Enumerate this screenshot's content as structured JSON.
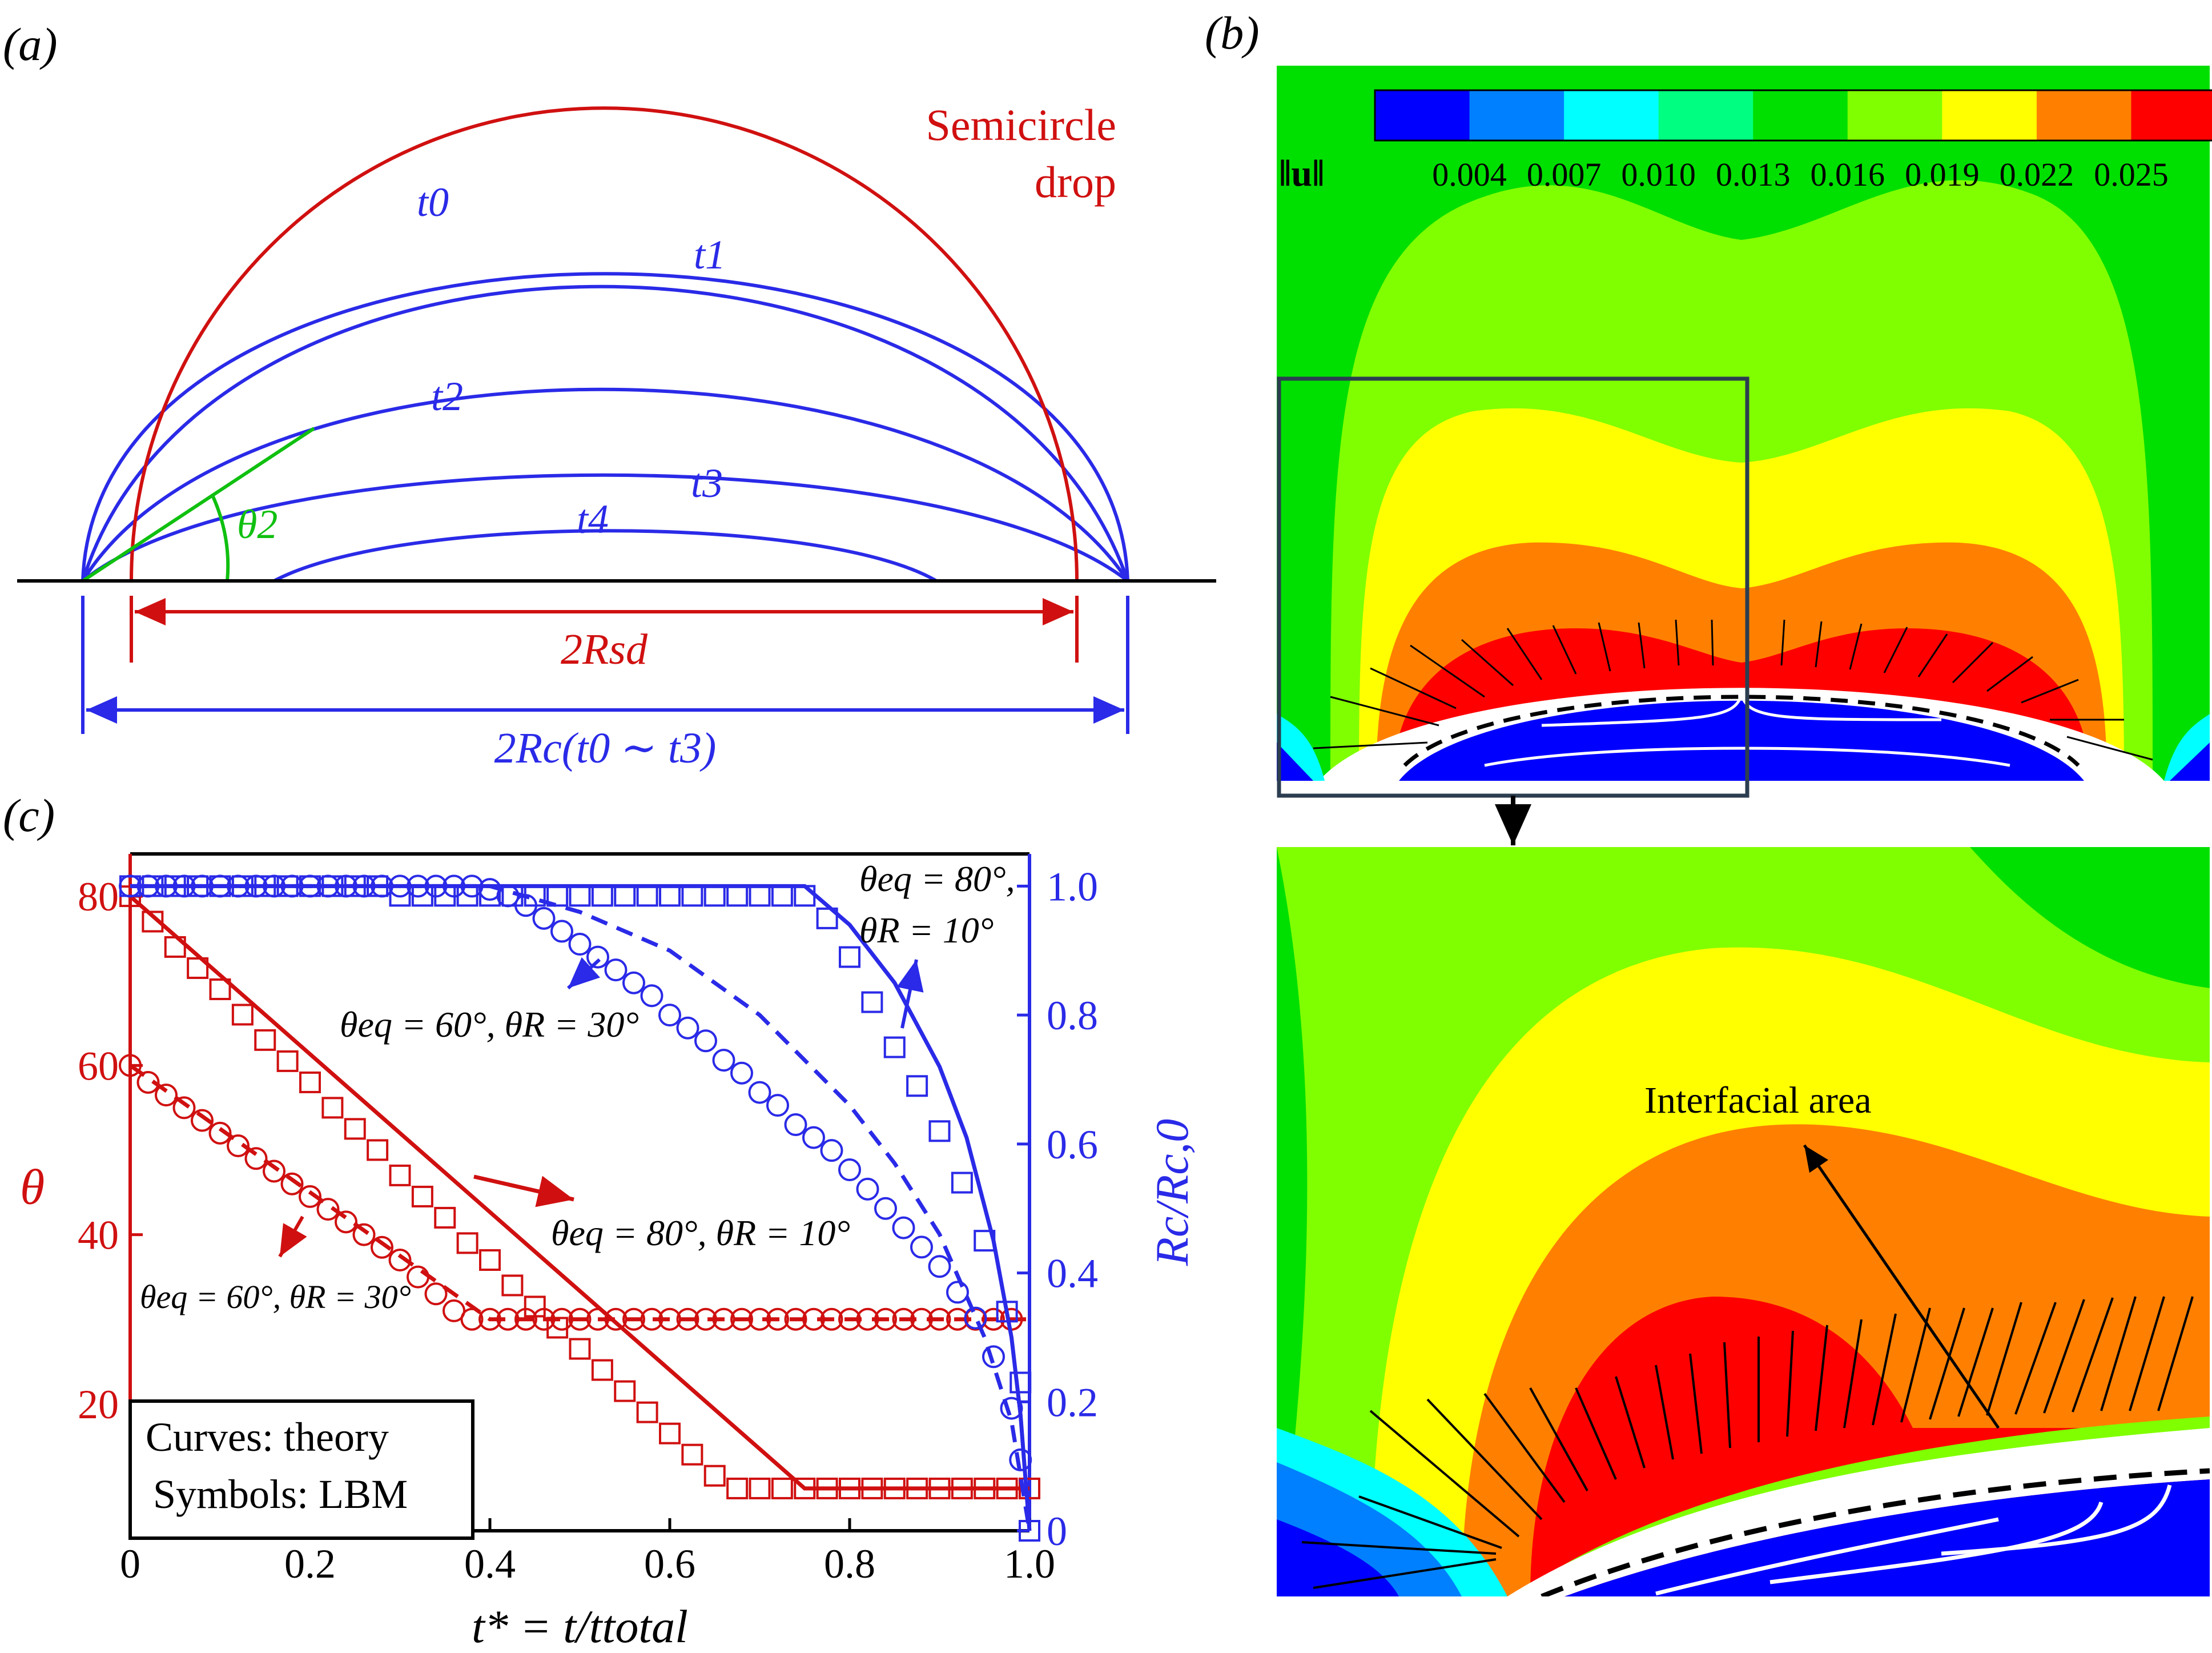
{
  "panels": {
    "a": {
      "label": "(a)",
      "semicircle_label_line1": "Semicircle",
      "semicircle_label_line2": "drop",
      "time_labels": [
        "t0",
        "t1",
        "t2",
        "t3",
        "t4"
      ],
      "theta2_label": "θ2",
      "rsd_label": "2Rsd",
      "rc_label": "2Rc(t0 ∼ t3)",
      "colors": {
        "semicircle": "#d01010",
        "profiles": "#2a2ae8",
        "tangent": "#10c010",
        "baseline": "#000000"
      }
    },
    "b": {
      "label": "(b)",
      "colorbar_symbol": "‖u‖",
      "colorbar_ticks": [
        "0.004",
        "0.007",
        "0.010",
        "0.013",
        "0.016",
        "0.019",
        "0.022",
        "0.025"
      ],
      "colorbar_colors": [
        "#0000ff",
        "#0080ff",
        "#00ffff",
        "#00ff80",
        "#00e000",
        "#80ff00",
        "#ffff00",
        "#ff8000",
        "#ff0000"
      ],
      "annotation": "Interfacial area"
    },
    "c": {
      "label": "(c)",
      "legend_line1": "Curves: theory",
      "legend_line2": "Symbols: LBM",
      "annotations": {
        "eq80_right": [
          "θeq = 80°,",
          "θR = 10°"
        ],
        "eq60_top": "θeq = 60°, θR = 30°",
        "eq80_mid": "θeq = 80°, θR = 10°",
        "eq60_bottom": "θeq = 60°, θR = 30°"
      }
    }
  },
  "chart_data": {
    "type": "line",
    "xlabel": "t* = t/ttotal",
    "ylabel": "θ",
    "y2label": "Rc/Rc,0",
    "xlim": [
      0,
      1.0
    ],
    "ylim": [
      5,
      85
    ],
    "y2lim": [
      -0.0,
      1.05
    ],
    "xticks": [
      "0",
      "0.2",
      "0.4",
      "0.6",
      "0.8",
      "1.0"
    ],
    "yticks": [
      "20",
      "40",
      "60",
      "80"
    ],
    "y2ticks": [
      "0",
      "0.2",
      "0.4",
      "0.6",
      "0.8",
      "1.0"
    ],
    "series": [
      {
        "axis": "left",
        "kind": "theory",
        "style": "solid",
        "color": "#d01010",
        "x": [
          0,
          0.75,
          1.0
        ],
        "y": [
          80,
          10,
          10
        ]
      },
      {
        "axis": "left",
        "kind": "theory",
        "style": "dashed",
        "color": "#d01010",
        "x": [
          0,
          0.4,
          1.0
        ],
        "y": [
          60,
          30,
          30
        ]
      },
      {
        "axis": "left",
        "kind": "LBM",
        "marker": "square",
        "color": "#d01010",
        "x": [
          0,
          0.025,
          0.05,
          0.075,
          0.1,
          0.125,
          0.15,
          0.175,
          0.2,
          0.225,
          0.25,
          0.275,
          0.3,
          0.325,
          0.35,
          0.375,
          0.4,
          0.425,
          0.45,
          0.475,
          0.5,
          0.525,
          0.55,
          0.575,
          0.6,
          0.625,
          0.65,
          0.675,
          0.7,
          0.725,
          0.75,
          0.775,
          0.8,
          0.825,
          0.85,
          0.875,
          0.9,
          0.925,
          0.95,
          0.975,
          1.0
        ],
        "y": [
          80,
          77,
          74,
          71.5,
          69,
          66,
          63,
          60.5,
          58,
          55,
          52.5,
          50,
          47,
          44.5,
          42,
          39,
          37,
          34,
          31.5,
          29,
          26.5,
          24,
          21.5,
          19,
          16.5,
          14,
          11.5,
          10,
          10,
          10,
          10,
          10,
          10,
          10,
          10,
          10,
          10,
          10,
          10,
          10,
          10
        ]
      },
      {
        "axis": "left",
        "kind": "LBM",
        "marker": "circle",
        "color": "#d01010",
        "x": [
          0,
          0.02,
          0.04,
          0.06,
          0.08,
          0.1,
          0.12,
          0.14,
          0.16,
          0.18,
          0.2,
          0.22,
          0.24,
          0.26,
          0.28,
          0.3,
          0.32,
          0.34,
          0.36,
          0.38,
          0.4,
          0.42,
          0.44,
          0.46,
          0.48,
          0.5,
          0.52,
          0.54,
          0.56,
          0.58,
          0.6,
          0.62,
          0.64,
          0.66,
          0.68,
          0.7,
          0.72,
          0.74,
          0.76,
          0.78,
          0.8,
          0.82,
          0.84,
          0.86,
          0.88,
          0.9,
          0.92,
          0.94,
          0.96,
          0.98
        ],
        "y": [
          60,
          58,
          56.5,
          55,
          53.5,
          52,
          50.5,
          49,
          47.5,
          46,
          44.5,
          43,
          41.5,
          40,
          38.5,
          37,
          35,
          33,
          31,
          30,
          30,
          30,
          30,
          30,
          30,
          30,
          30,
          30,
          30,
          30,
          30,
          30,
          30,
          30,
          30,
          30,
          30,
          30,
          30,
          30,
          30,
          30,
          30,
          30,
          30,
          30,
          30,
          30,
          30,
          30
        ]
      },
      {
        "axis": "right",
        "kind": "theory",
        "style": "solid",
        "color": "#2a2ae8",
        "x": [
          0,
          0.75,
          0.8,
          0.85,
          0.9,
          0.93,
          0.96,
          0.98,
          0.99,
          1.0
        ],
        "y": [
          1.0,
          1.0,
          0.94,
          0.85,
          0.72,
          0.61,
          0.45,
          0.3,
          0.18,
          0.0
        ]
      },
      {
        "axis": "right",
        "kind": "theory",
        "style": "dashed",
        "color": "#2a2ae8",
        "x": [
          0,
          0.4,
          0.5,
          0.6,
          0.7,
          0.8,
          0.85,
          0.9,
          0.95,
          0.98,
          1.0
        ],
        "y": [
          1.0,
          1.0,
          0.96,
          0.9,
          0.8,
          0.66,
          0.57,
          0.46,
          0.3,
          0.17,
          0.0
        ]
      },
      {
        "axis": "right",
        "kind": "LBM",
        "marker": "square",
        "color": "#2a2ae8",
        "x": [
          0,
          0.025,
          0.05,
          0.075,
          0.1,
          0.125,
          0.15,
          0.175,
          0.2,
          0.225,
          0.25,
          0.275,
          0.3,
          0.325,
          0.35,
          0.375,
          0.4,
          0.425,
          0.45,
          0.475,
          0.5,
          0.525,
          0.55,
          0.575,
          0.6,
          0.625,
          0.65,
          0.675,
          0.7,
          0.725,
          0.75,
          0.775,
          0.8,
          0.825,
          0.85,
          0.875,
          0.9,
          0.925,
          0.95,
          0.975,
          0.99,
          1.0
        ],
        "y": [
          1.0,
          1.0,
          1.0,
          1.0,
          1.0,
          1.0,
          1.0,
          1.0,
          1.0,
          1.0,
          1.0,
          1.0,
          0.985,
          0.985,
          0.985,
          0.985,
          0.985,
          0.985,
          0.985,
          0.985,
          0.985,
          0.985,
          0.985,
          0.985,
          0.985,
          0.985,
          0.985,
          0.985,
          0.985,
          0.985,
          0.985,
          0.95,
          0.89,
          0.82,
          0.75,
          0.69,
          0.62,
          0.54,
          0.45,
          0.34,
          0.23,
          0.0
        ]
      },
      {
        "axis": "right",
        "kind": "LBM",
        "marker": "circle",
        "color": "#2a2ae8",
        "x": [
          0,
          0.02,
          0.04,
          0.06,
          0.08,
          0.1,
          0.12,
          0.14,
          0.16,
          0.18,
          0.2,
          0.22,
          0.24,
          0.26,
          0.28,
          0.3,
          0.32,
          0.34,
          0.36,
          0.38,
          0.4,
          0.42,
          0.44,
          0.46,
          0.48,
          0.5,
          0.52,
          0.54,
          0.56,
          0.58,
          0.6,
          0.62,
          0.64,
          0.66,
          0.68,
          0.7,
          0.72,
          0.74,
          0.76,
          0.78,
          0.8,
          0.82,
          0.84,
          0.86,
          0.88,
          0.9,
          0.92,
          0.94,
          0.96,
          0.98,
          0.99
        ],
        "y": [
          1.0,
          1.0,
          1.0,
          1.0,
          1.0,
          1.0,
          1.0,
          1.0,
          1.0,
          1.0,
          1.0,
          1.0,
          1.0,
          1.0,
          1.0,
          1.0,
          1.0,
          1.0,
          1.0,
          1.0,
          0.995,
          0.985,
          0.97,
          0.95,
          0.93,
          0.91,
          0.89,
          0.87,
          0.85,
          0.83,
          0.8,
          0.78,
          0.76,
          0.73,
          0.71,
          0.68,
          0.66,
          0.63,
          0.61,
          0.59,
          0.56,
          0.53,
          0.5,
          0.47,
          0.44,
          0.41,
          0.37,
          0.33,
          0.27,
          0.19,
          0.11
        ]
      }
    ]
  }
}
